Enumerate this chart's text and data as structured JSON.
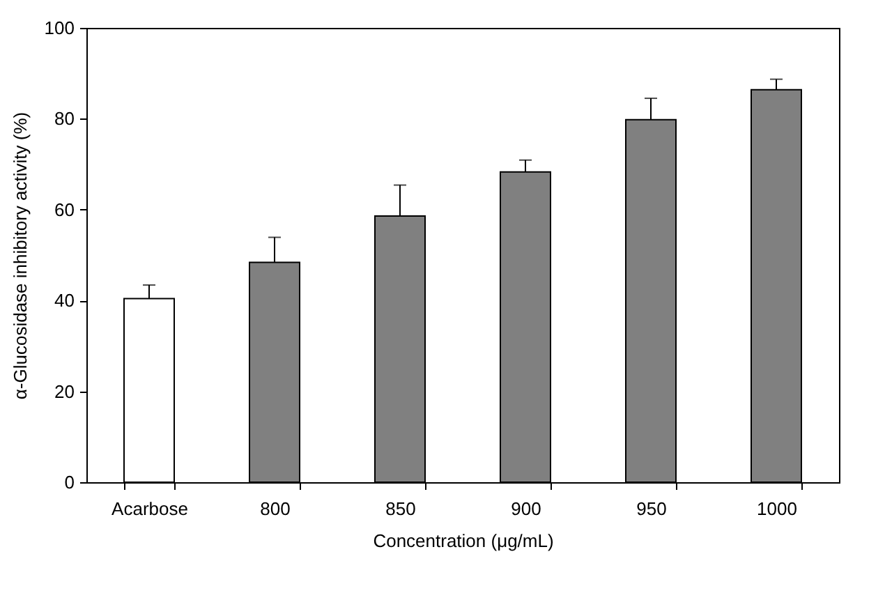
{
  "chart_data": {
    "type": "bar",
    "xlabel": "Concentration (μg/mL)",
    "ylabel": "α-Glucosidase inhibitory activity (%)",
    "categories": [
      "Acarbose",
      "800",
      "850",
      "900",
      "950",
      "1000"
    ],
    "values": [
      40.4,
      48.4,
      58.6,
      68.3,
      79.8,
      86.4
    ],
    "errors": [
      [
        40.4,
        43.4
      ],
      [
        48.4,
        53.9
      ],
      [
        58.6,
        65.4
      ],
      [
        68.3,
        70.9
      ],
      [
        79.8,
        84.5
      ],
      [
        86.4,
        88.7
      ]
    ],
    "colors": [
      "#ffffff",
      "#808080",
      "#808080",
      "#808080",
      "#808080",
      "#808080"
    ],
    "ylim": [
      0,
      100
    ],
    "yticks": [
      0,
      20,
      40,
      60,
      80,
      100
    ],
    "grid": false
  }
}
